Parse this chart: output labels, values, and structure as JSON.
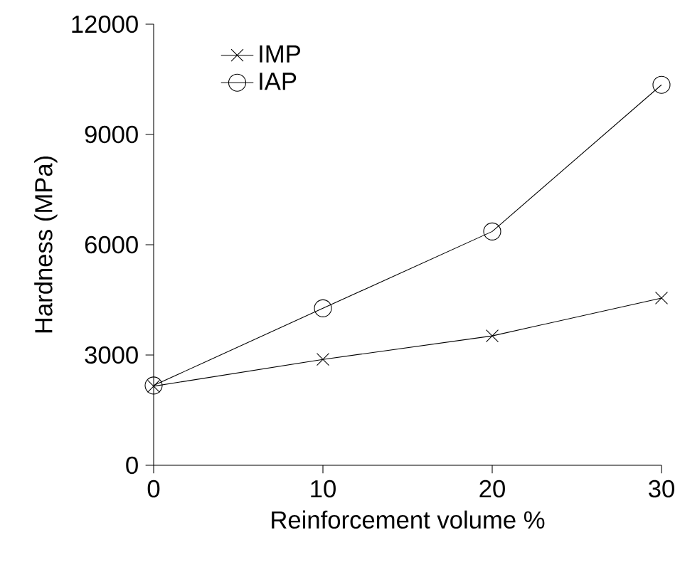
{
  "chart_data": {
    "type": "line",
    "xlabel": "Reinforcement volume %",
    "ylabel": "Hardness (MPa)",
    "x": [
      0,
      10,
      20,
      30
    ],
    "series": [
      {
        "name": "IMP",
        "color": "#000000",
        "marker": "cross",
        "values": [
          2150,
          2880,
          3520,
          4550
        ]
      },
      {
        "name": "IAP",
        "color": "#000000",
        "marker": "circle",
        "values": [
          2170,
          4270,
          6360,
          10350
        ]
      }
    ],
    "xlim": [
      0,
      30
    ],
    "xticks": [
      0,
      10,
      20,
      30
    ],
    "ylim": [
      0,
      12000
    ],
    "yticks": [
      0,
      3000,
      6000,
      9000,
      12000
    ],
    "grid": false,
    "legend": "top left",
    "line_style": "solid"
  }
}
